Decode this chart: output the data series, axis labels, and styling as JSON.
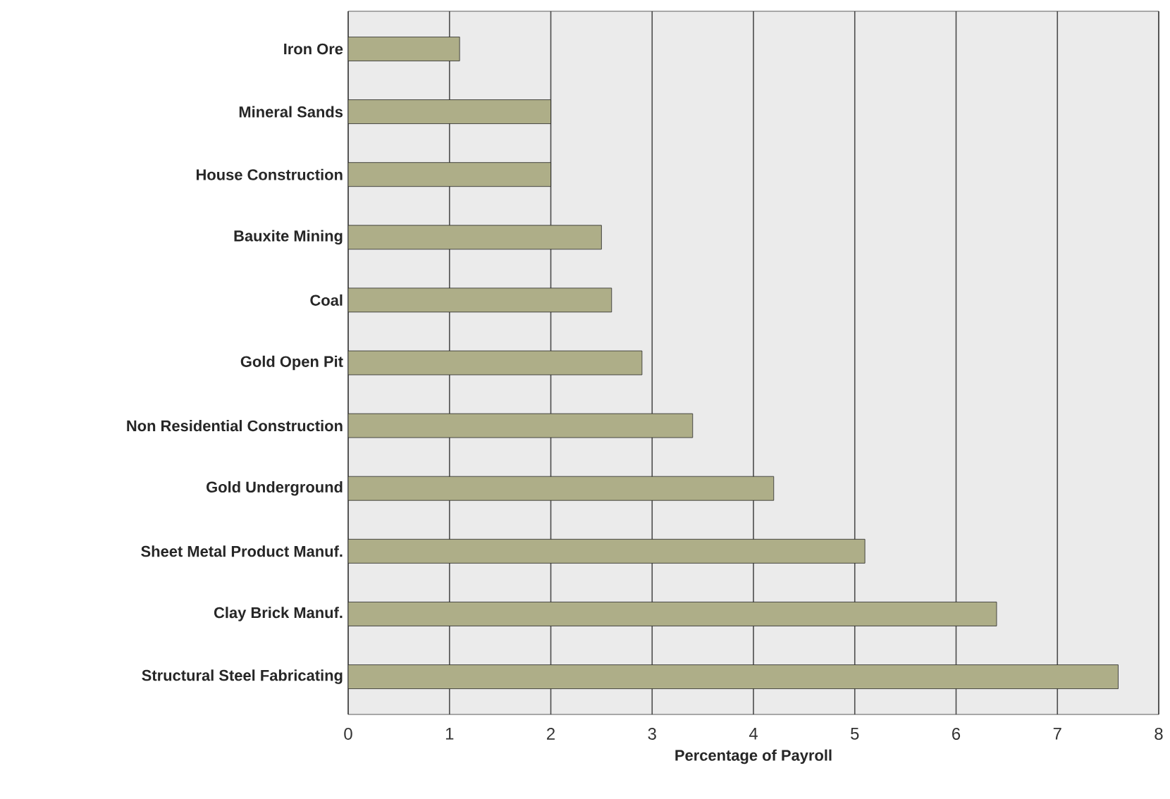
{
  "chart_data": {
    "type": "bar",
    "orientation": "horizontal",
    "xlabel": "Percentage of Payroll",
    "categories": [
      "Iron Ore",
      "Mineral Sands",
      "House Construction",
      "Bauxite Mining",
      "Coal",
      "Gold Open Pit",
      "Non Residential Construction",
      "Gold Underground",
      "Sheet Metal Product Manuf.",
      "Clay Brick Manuf.",
      "Structural Steel Fabricating"
    ],
    "values": [
      1.1,
      2.0,
      2.0,
      2.5,
      2.6,
      2.9,
      3.4,
      4.2,
      5.1,
      6.4,
      7.6
    ],
    "color": "#aeae88",
    "xlim": [
      0,
      8
    ],
    "xticks": [
      0,
      1,
      2,
      3,
      4,
      5,
      6,
      7,
      8
    ],
    "grid": "x"
  }
}
